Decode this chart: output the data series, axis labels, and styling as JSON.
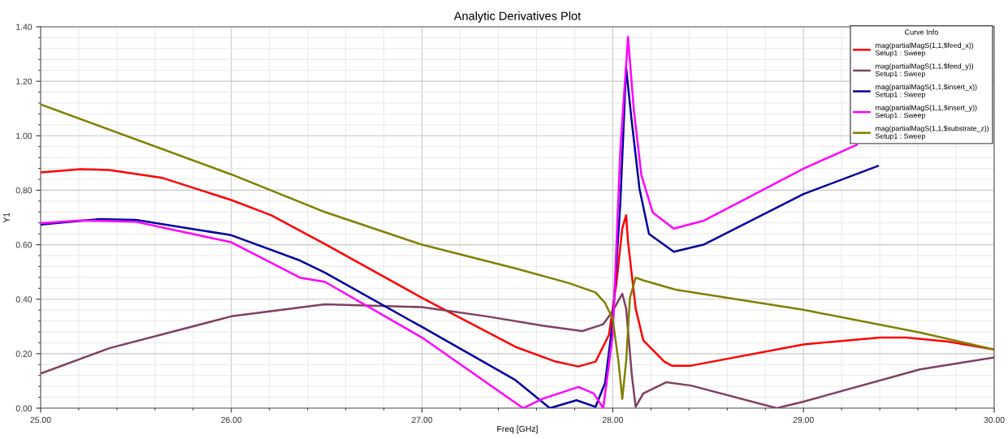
{
  "chart_data": {
    "type": "line",
    "title": "Analytic Derivatives Plot",
    "xlabel": "Freq [GHz]",
    "ylabel": "Y1",
    "legend_title": "Curve Info",
    "xlim": [
      25,
      30
    ],
    "ylim": [
      0,
      1.4
    ],
    "xticks": [
      {
        "value": 25,
        "label": "25.00"
      },
      {
        "value": 26,
        "label": "26.00"
      },
      {
        "value": 27,
        "label": "27.00"
      },
      {
        "value": 28,
        "label": "28.00"
      },
      {
        "value": 29,
        "label": "29.00"
      },
      {
        "value": 30,
        "label": "30.00"
      }
    ],
    "yticks": [
      {
        "value": 0,
        "label": "0.00"
      },
      {
        "value": 0.2,
        "label": "0.20"
      },
      {
        "value": 0.4,
        "label": "0.40"
      },
      {
        "value": 0.6,
        "label": "0.60"
      },
      {
        "value": 0.8,
        "label": "0.80"
      },
      {
        "value": 1.0,
        "label": "1.00"
      },
      {
        "value": 1.2,
        "label": "1.20"
      },
      {
        "value": 1.4,
        "label": "1.40"
      }
    ],
    "grid": true,
    "legend": "top right",
    "marker": "none",
    "line_style": "solid",
    "series": [
      {
        "name": "mag(partialMagS(1,1,$feed_x))\nSetup1 : Sweep",
        "color": "#ff0000",
        "x": [
          25,
          25.21,
          25.36,
          25.64,
          26,
          26.21,
          26.49,
          27,
          27.49,
          27.7,
          27.82,
          27.91,
          27.98,
          28.02,
          28.05,
          28.07,
          28.08,
          28.12,
          28.16,
          28.27,
          28.31,
          28.41,
          29,
          29.4,
          29.54,
          29.76,
          30
        ],
        "values": [
          0.865,
          0.877,
          0.874,
          0.845,
          0.764,
          0.708,
          0.603,
          0.405,
          0.225,
          0.171,
          0.153,
          0.171,
          0.269,
          0.464,
          0.66,
          0.708,
          0.611,
          0.366,
          0.249,
          0.171,
          0.156,
          0.156,
          0.234,
          0.259,
          0.259,
          0.244,
          0.215
        ]
      },
      {
        "name": "mag(partialMagS(1,1,$feed_y))\nSetup1 : Sweep",
        "color": "#804060",
        "x": [
          25,
          25.36,
          26,
          26.49,
          27,
          27.34,
          27.63,
          27.84,
          27.95,
          28.0,
          28.05,
          28.07,
          28.1,
          28.12,
          28.16,
          28.28,
          28.41,
          28.86,
          29,
          29.61,
          30
        ],
        "values": [
          0.127,
          0.22,
          0.337,
          0.381,
          0.371,
          0.337,
          0.303,
          0.283,
          0.308,
          0.357,
          0.42,
          0.366,
          0.122,
          0.005,
          0.054,
          0.095,
          0.083,
          0.0,
          0.024,
          0.142,
          0.186
        ]
      },
      {
        "name": "mag(partialMagS(1,1,$insert_x))\nSetup1 : Sweep",
        "color": "#0000a0",
        "x": [
          25,
          25.31,
          25.5,
          26,
          26.36,
          26.49,
          27,
          27.49,
          27.67,
          27.81,
          27.91,
          27.96,
          28.0,
          28.04,
          28.07,
          28.1,
          28.14,
          28.19,
          28.32,
          28.48,
          29,
          29.39
        ],
        "values": [
          0.674,
          0.694,
          0.691,
          0.635,
          0.542,
          0.498,
          0.298,
          0.103,
          0.0,
          0.029,
          0.005,
          0.093,
          0.318,
          0.757,
          1.25,
          1.05,
          0.806,
          0.64,
          0.574,
          0.601,
          0.786,
          0.889
        ]
      },
      {
        "name": "mag(partialMagS(1,1,$insert_y))\nSetup1 : Sweep",
        "color": "#ff00ff",
        "x": [
          25,
          25.21,
          25.5,
          26,
          26.36,
          26.49,
          27,
          27.53,
          27.63,
          27.82,
          27.9,
          27.95,
          28.0,
          28.04,
          28.08,
          28.11,
          28.15,
          28.21,
          28.32,
          28.48,
          29,
          29.28
        ],
        "values": [
          0.679,
          0.689,
          0.684,
          0.609,
          0.479,
          0.464,
          0.259,
          0.0,
          0.034,
          0.078,
          0.054,
          0.0,
          0.269,
          0.952,
          1.363,
          1.099,
          0.855,
          0.718,
          0.659,
          0.689,
          0.879,
          0.967
        ]
      },
      {
        "name": "mag(partialMagS(1,1,$substrate_z))\nSetup1 : Sweep",
        "color": "#808000",
        "x": [
          25,
          26,
          26.49,
          27,
          27.49,
          27.77,
          27.91,
          27.96,
          28.0,
          28.03,
          28.05,
          28.07,
          28.09,
          28.12,
          28.16,
          28.33,
          29,
          29.61,
          30
        ],
        "values": [
          1.115,
          0.858,
          0.72,
          0.6,
          0.513,
          0.459,
          0.425,
          0.386,
          0.327,
          0.171,
          0.034,
          0.171,
          0.405,
          0.479,
          0.469,
          0.435,
          0.361,
          0.278,
          0.215
        ]
      }
    ]
  }
}
